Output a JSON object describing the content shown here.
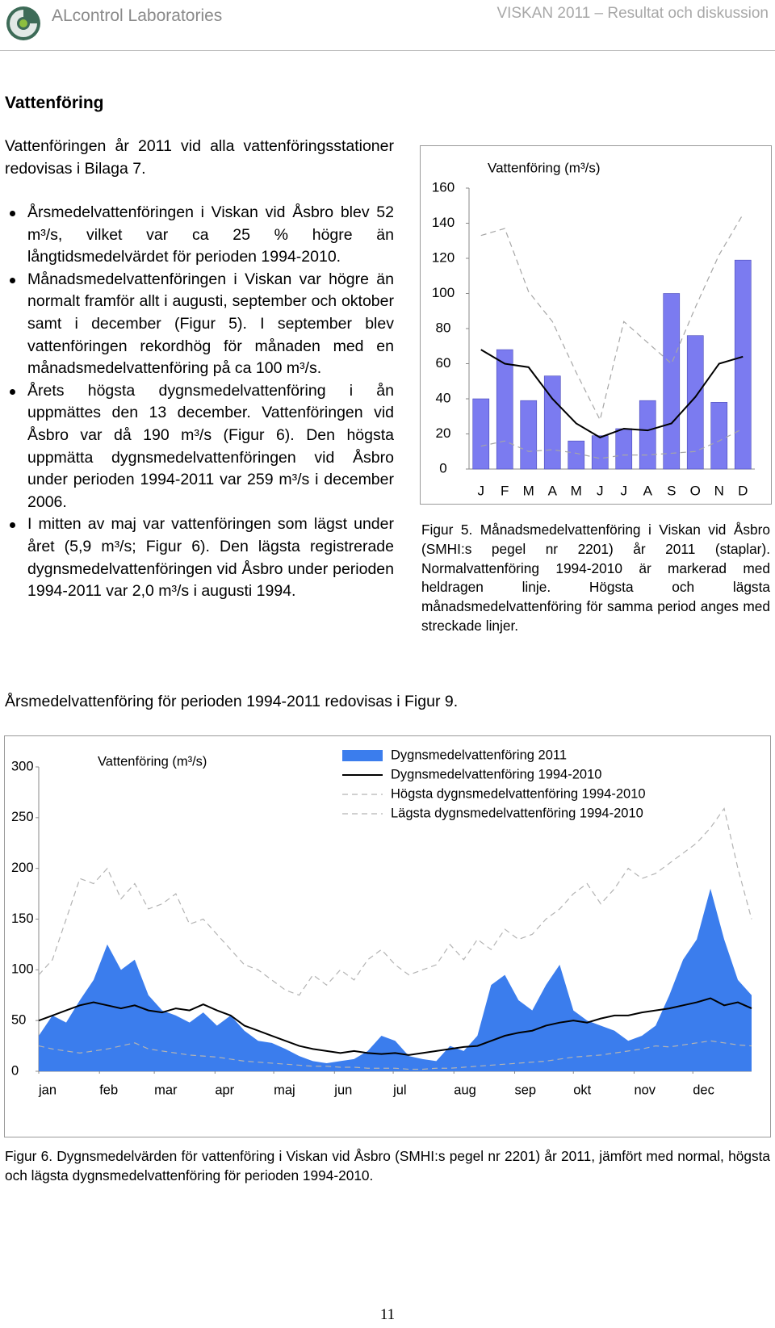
{
  "header": {
    "org": "ALcontrol Laboratories",
    "title": "VISKAN 2011 – Resultat och diskussion"
  },
  "heading": "Vattenföring",
  "intro": "Vattenföringen år 2011 vid alla vattenföringsstationer redovisas i Bilaga 7.",
  "bullets": [
    "Årsmedelvattenföringen i Viskan vid Åsbro blev 52 m³/s, vilket var ca 25 % högre än långtidsmedelvärdet för perioden 1994-2010.",
    "Månadsmedelvattenföringen i Viskan var högre än normalt framför allt i augusti, september och oktober samt i december (Figur 5). I september blev vattenföringen rekordhög för månaden med en månadsmedelvattenföring på ca 100 m³/s.",
    "Årets högsta dygnsmedelvattenföring i ån uppmättes den 13 december. Vattenföringen vid Åsbro var då 190 m³/s (Figur 6). Den högsta uppmätta dygnsmedelvattenföringen vid Åsbro under perioden 1994-2011 var 259 m³/s i december 2006.",
    "I mitten av maj var vattenföringen som lägst under året (5,9 m³/s; Figur 6). Den lägsta registrerade dygnsmedelvattenföringen vid Åsbro under perioden 1994-2011 var 2,0 m³/s i augusti 1994."
  ],
  "paragraph": "Årsmedelvattenföring för perioden 1994-2011 redovisas i Figur 9.",
  "page_number": "11",
  "chart_data": [
    {
      "type": "bar",
      "title": "Vattenföring (m³/s)",
      "categories": [
        "J",
        "F",
        "M",
        "A",
        "M",
        "J",
        "J",
        "A",
        "S",
        "O",
        "N",
        "D"
      ],
      "ylim": [
        0,
        160
      ],
      "yticks": [
        0,
        20,
        40,
        60,
        80,
        100,
        120,
        140,
        160
      ],
      "series": [
        {
          "type": "bar",
          "color": "#7b7bf0",
          "values": [
            40,
            68,
            39,
            53,
            16,
            19,
            23,
            39,
            100,
            76,
            38,
            119
          ]
        },
        {
          "type": "line",
          "color": "#000000",
          "dash": "solid",
          "values": [
            68,
            60,
            58,
            40,
            26,
            18,
            23,
            22,
            26,
            41,
            60,
            64
          ]
        },
        {
          "type": "line",
          "color": "#a6a6a6",
          "dash": "dashed",
          "values": [
            133,
            137,
            101,
            84,
            55,
            28,
            84,
            72,
            60,
            92,
            122,
            145
          ]
        },
        {
          "type": "line",
          "color": "#a6a6a6",
          "dash": "dashed",
          "values": [
            13,
            16,
            10,
            11,
            9,
            6,
            8,
            8,
            9,
            10,
            16,
            23
          ]
        }
      ],
      "caption": "Figur 5. Månadsmedelvattenföring i Viskan vid Åsbro (SMHI:s pegel nr 2201) år 2011 (staplar). Normalvattenföring 1994-2010 är markerad med heldragen linje. Högsta och lägsta månadsmedelvattenföring för samma period anges med streckade linjer."
    },
    {
      "type": "line",
      "title": "Vattenföring (m³/s)",
      "x": [
        1,
        8,
        15,
        22,
        29,
        36,
        43,
        50,
        57,
        64,
        71,
        78,
        85,
        92,
        99,
        106,
        113,
        120,
        127,
        134,
        141,
        148,
        155,
        162,
        169,
        176,
        183,
        190,
        197,
        204,
        211,
        218,
        225,
        232,
        239,
        246,
        253,
        260,
        267,
        274,
        281,
        288,
        295,
        302,
        309,
        316,
        323,
        330,
        337,
        344,
        351,
        358,
        365
      ],
      "xlim": [
        1,
        365
      ],
      "xticks": [
        {
          "value": 1,
          "label": "jan"
        },
        {
          "value": 32,
          "label": "feb"
        },
        {
          "value": 60,
          "label": "mar"
        },
        {
          "value": 91,
          "label": "apr"
        },
        {
          "value": 121,
          "label": "maj"
        },
        {
          "value": 152,
          "label": "jun"
        },
        {
          "value": 182,
          "label": "jul"
        },
        {
          "value": 213,
          "label": "aug"
        },
        {
          "value": 244,
          "label": "sep"
        },
        {
          "value": 274,
          "label": "okt"
        },
        {
          "value": 305,
          "label": "nov"
        },
        {
          "value": 335,
          "label": "dec"
        }
      ],
      "ylim": [
        0,
        300
      ],
      "yticks": [
        0,
        50,
        100,
        150,
        200,
        250,
        300
      ],
      "legend": "top",
      "series": [
        {
          "name": "Dygnsmedelvattenföring 2011",
          "type": "area",
          "color": "#3b7ded",
          "values": [
            35,
            55,
            48,
            70,
            90,
            125,
            100,
            110,
            75,
            60,
            55,
            48,
            58,
            45,
            55,
            40,
            30,
            28,
            22,
            15,
            10,
            8,
            10,
            12,
            20,
            35,
            30,
            15,
            12,
            10,
            25,
            20,
            35,
            85,
            95,
            70,
            60,
            85,
            105,
            60,
            50,
            45,
            40,
            30,
            35,
            45,
            75,
            110,
            130,
            180,
            130,
            90,
            75
          ]
        },
        {
          "name": "Dygnsmedelvattenföring 1994-2010",
          "type": "line",
          "color": "#000000",
          "dash": "solid",
          "values": [
            50,
            55,
            60,
            65,
            68,
            65,
            62,
            65,
            60,
            58,
            62,
            60,
            66,
            60,
            55,
            45,
            40,
            35,
            30,
            25,
            22,
            20,
            18,
            20,
            18,
            17,
            18,
            16,
            18,
            20,
            22,
            24,
            25,
            30,
            35,
            38,
            40,
            45,
            48,
            50,
            48,
            52,
            55,
            55,
            58,
            60,
            62,
            65,
            68,
            72,
            65,
            68,
            62
          ]
        },
        {
          "name": "Högsta dygnsmedelvattenföring 1994-2010",
          "type": "line",
          "color": "#b3b3b3",
          "dash": "dashed",
          "values": [
            95,
            110,
            150,
            190,
            185,
            200,
            170,
            185,
            160,
            165,
            175,
            145,
            150,
            135,
            120,
            105,
            100,
            90,
            80,
            75,
            95,
            85,
            100,
            90,
            110,
            120,
            105,
            95,
            100,
            105,
            125,
            110,
            130,
            120,
            140,
            130,
            135,
            150,
            160,
            175,
            185,
            165,
            180,
            200,
            190,
            195,
            205,
            215,
            225,
            240,
            259,
            200,
            150
          ]
        },
        {
          "name": "Lägsta dygnsmedelvattenföring 1994-2010",
          "type": "line",
          "color": "#b3b3b3",
          "dash": "dashed",
          "values": [
            25,
            22,
            20,
            18,
            20,
            22,
            25,
            28,
            22,
            20,
            18,
            16,
            15,
            14,
            12,
            10,
            9,
            8,
            7,
            6,
            5,
            5,
            4,
            4,
            3,
            3,
            3,
            2,
            2,
            3,
            3,
            4,
            5,
            6,
            7,
            8,
            9,
            10,
            12,
            14,
            15,
            16,
            18,
            20,
            22,
            25,
            24,
            26,
            28,
            30,
            28,
            26,
            25
          ]
        }
      ],
      "caption": "Figur 6. Dygnsmedelvärden för vattenföring i Viskan vid Åsbro (SMHI:s pegel nr 2201) år 2011, jämfört med normal, högsta och lägsta dygnsmedelvattenföring för perioden 1994-2010."
    }
  ]
}
